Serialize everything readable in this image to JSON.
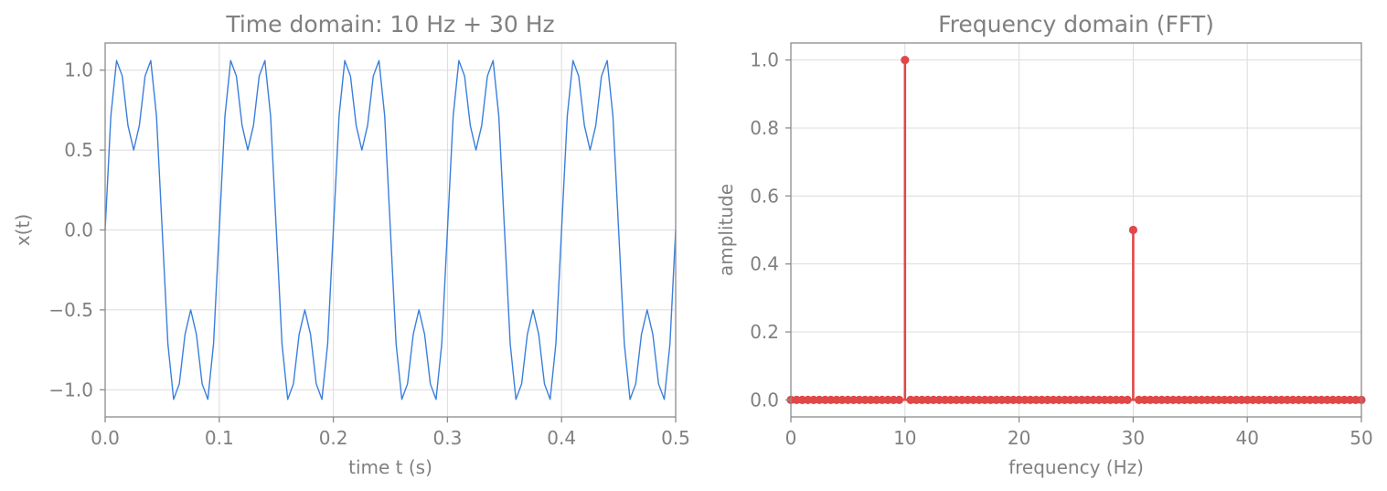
{
  "chart_data": [
    {
      "type": "line",
      "title": "Time domain: 10 Hz + 30 Hz",
      "xlabel": "time t (s)",
      "ylabel": "x(t)",
      "xlim": [
        0,
        0.5
      ],
      "ylim": [
        -1.17,
        1.17
      ],
      "xticks": [
        0,
        0.1,
        0.2,
        0.3,
        0.4,
        0.5
      ],
      "xtick_labels": [
        "0.0",
        "0.1",
        "0.2",
        "0.3",
        "0.4",
        "0.5"
      ],
      "yticks": [
        -1,
        -0.5,
        0,
        0.5,
        1
      ],
      "ytick_labels": [
        "−1.0",
        "−0.5",
        "0.0",
        "0.5",
        "1.0"
      ],
      "grid": true,
      "line_color": "#3a7fdc",
      "series": [
        {
          "x": [
            0,
            0.005,
            0.01,
            0.015,
            0.02,
            0.025,
            0.03,
            0.035,
            0.04,
            0.045,
            0.05,
            0.055,
            0.06,
            0.065,
            0.07,
            0.075,
            0.08,
            0.085,
            0.09,
            0.095,
            0.1,
            0.105,
            0.11,
            0.115,
            0.12,
            0.125,
            0.13,
            0.135,
            0.14,
            0.145,
            0.15,
            0.155,
            0.16,
            0.165,
            0.17,
            0.175,
            0.18,
            0.185,
            0.19,
            0.195,
            0.2,
            0.205,
            0.21,
            0.215,
            0.22,
            0.225,
            0.23,
            0.235,
            0.24,
            0.245,
            0.25,
            0.255,
            0.26,
            0.265,
            0.27,
            0.275,
            0.28,
            0.285,
            0.29,
            0.295,
            0.3,
            0.305,
            0.31,
            0.315,
            0.32,
            0.325,
            0.33,
            0.335,
            0.34,
            0.345,
            0.35,
            0.355,
            0.36,
            0.365,
            0.37,
            0.375,
            0.38,
            0.385,
            0.39,
            0.395,
            0.4,
            0.405,
            0.41,
            0.415,
            0.42,
            0.425,
            0.43,
            0.435,
            0.44,
            0.445,
            0.45,
            0.455,
            0.46,
            0.465,
            0.47,
            0.475,
            0.48,
            0.485,
            0.49,
            0.495,
            0.5
          ],
          "values": [
            0,
            0.713,
            1.06,
            0.963,
            0.654,
            0.5,
            0.654,
            0.963,
            1.06,
            0.713,
            0,
            -0.713,
            -1.06,
            -0.963,
            -0.654,
            -0.5,
            -0.654,
            -0.963,
            -1.06,
            -0.713,
            0,
            0.713,
            1.06,
            0.963,
            0.654,
            0.5,
            0.654,
            0.963,
            1.06,
            0.713,
            0,
            -0.713,
            -1.06,
            -0.963,
            -0.654,
            -0.5,
            -0.654,
            -0.963,
            -1.06,
            -0.713,
            0,
            0.713,
            1.06,
            0.963,
            0.654,
            0.5,
            0.654,
            0.963,
            1.06,
            0.713,
            0,
            -0.713,
            -1.06,
            -0.963,
            -0.654,
            -0.5,
            -0.654,
            -0.963,
            -1.06,
            -0.713,
            0,
            0.713,
            1.06,
            0.963,
            0.654,
            0.5,
            0.654,
            0.963,
            1.06,
            0.713,
            0,
            -0.713,
            -1.06,
            -0.963,
            -0.654,
            -0.5,
            -0.654,
            -0.963,
            -1.06,
            -0.713,
            0,
            0.713,
            1.06,
            0.963,
            0.654,
            0.5,
            0.654,
            0.963,
            1.06,
            0.713,
            0,
            -0.713,
            -1.06,
            -0.963,
            -0.654,
            -0.5,
            -0.654,
            -0.963,
            -1.06,
            -0.713,
            0
          ]
        }
      ]
    },
    {
      "type": "stem",
      "title": "Frequency domain (FFT)",
      "xlabel": "frequency (Hz)",
      "ylabel": "amplitude",
      "xlim": [
        0,
        50
      ],
      "ylim": [
        -0.05,
        1.05
      ],
      "xticks": [
        0,
        10,
        20,
        30,
        40,
        50
      ],
      "xtick_labels": [
        "0",
        "10",
        "20",
        "30",
        "40",
        "50"
      ],
      "yticks": [
        0,
        0.2,
        0.4,
        0.6,
        0.8,
        1.0
      ],
      "ytick_labels": [
        "0.0",
        "0.2",
        "0.4",
        "0.6",
        "0.8",
        "1.0"
      ],
      "grid": true,
      "stem_color": "#e04848",
      "series": [
        {
          "x": [
            0,
            0.5,
            1,
            1.5,
            2,
            2.5,
            3,
            3.5,
            4,
            4.5,
            5,
            5.5,
            6,
            6.5,
            7,
            7.5,
            8,
            8.5,
            9,
            9.5,
            10,
            10.5,
            11,
            11.5,
            12,
            12.5,
            13,
            13.5,
            14,
            14.5,
            15,
            15.5,
            16,
            16.5,
            17,
            17.5,
            18,
            18.5,
            19,
            19.5,
            20,
            20.5,
            21,
            21.5,
            22,
            22.5,
            23,
            23.5,
            24,
            24.5,
            25,
            25.5,
            26,
            26.5,
            27,
            27.5,
            28,
            28.5,
            29,
            29.5,
            30,
            30.5,
            31,
            31.5,
            32,
            32.5,
            33,
            33.5,
            34,
            34.5,
            35,
            35.5,
            36,
            36.5,
            37,
            37.5,
            38,
            38.5,
            39,
            39.5,
            40,
            40.5,
            41,
            41.5,
            42,
            42.5,
            43,
            43.5,
            44,
            44.5,
            45,
            45.5,
            46,
            46.5,
            47,
            47.5,
            48,
            48.5,
            49,
            49.5,
            50
          ],
          "values": [
            0,
            0,
            0,
            0,
            0,
            0,
            0,
            0,
            0,
            0,
            0,
            0,
            0,
            0,
            0,
            0,
            0,
            0,
            0,
            0,
            1.0,
            0,
            0,
            0,
            0,
            0,
            0,
            0,
            0,
            0,
            0,
            0,
            0,
            0,
            0,
            0,
            0,
            0,
            0,
            0,
            0,
            0,
            0,
            0,
            0,
            0,
            0,
            0,
            0,
            0,
            0,
            0,
            0,
            0,
            0,
            0,
            0,
            0,
            0,
            0,
            0.5,
            0,
            0,
            0,
            0,
            0,
            0,
            0,
            0,
            0,
            0,
            0,
            0,
            0,
            0,
            0,
            0,
            0,
            0,
            0,
            0,
            0,
            0,
            0,
            0,
            0,
            0,
            0,
            0,
            0,
            0,
            0,
            0,
            0,
            0,
            0,
            0,
            0,
            0,
            0,
            0
          ]
        }
      ]
    }
  ]
}
